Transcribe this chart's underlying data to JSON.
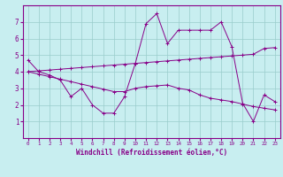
{
  "xlabel": "Windchill (Refroidissement éolien,°C)",
  "bg_color": "#c8eef0",
  "line_color": "#880088",
  "grid_color": "#99cccc",
  "xlim": [
    -0.5,
    23.5
  ],
  "ylim": [
    0,
    8
  ],
  "xticks": [
    0,
    1,
    2,
    3,
    4,
    5,
    6,
    7,
    8,
    9,
    10,
    11,
    12,
    13,
    14,
    15,
    16,
    17,
    18,
    19,
    20,
    21,
    22,
    23
  ],
  "yticks": [
    1,
    2,
    3,
    4,
    5,
    6,
    7
  ],
  "series": [
    [
      4.7,
      4.0,
      3.8,
      3.5,
      2.5,
      3.0,
      2.0,
      1.5,
      1.5,
      2.5,
      4.5,
      6.9,
      7.5,
      5.7,
      6.5,
      6.5,
      6.5,
      6.5,
      7.0,
      5.5,
      2.1,
      1.0,
      2.6,
      2.2
    ],
    [
      4.0,
      4.05,
      4.1,
      4.15,
      4.2,
      4.25,
      4.3,
      4.35,
      4.4,
      4.45,
      4.5,
      4.55,
      4.6,
      4.65,
      4.7,
      4.75,
      4.8,
      4.85,
      4.9,
      4.95,
      5.0,
      5.05,
      5.4,
      5.45
    ],
    [
      4.0,
      3.85,
      3.7,
      3.55,
      3.4,
      3.25,
      3.1,
      2.95,
      2.8,
      2.8,
      3.0,
      3.1,
      3.15,
      3.2,
      3.0,
      2.9,
      2.6,
      2.4,
      2.3,
      2.2,
      2.05,
      1.9,
      1.8,
      1.7
    ]
  ]
}
